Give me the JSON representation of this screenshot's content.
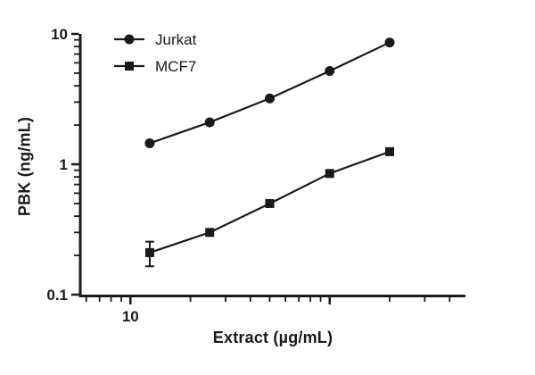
{
  "chart_data": {
    "type": "line",
    "title": "",
    "xlabel": "Extract (µg/mL)",
    "ylabel": "PBK (ng/mL)",
    "color": "#1a1a1a",
    "background": "#ffffff",
    "grid": false,
    "legend_position": "top-left",
    "x_axis": {
      "scale": "log",
      "range": [
        5.6,
        480
      ],
      "major_ticks": [
        10,
        100
      ],
      "labeled_ticks": [
        10
      ],
      "tick_labels": [
        "10"
      ]
    },
    "y_axis": {
      "scale": "log",
      "range": [
        0.1,
        10
      ],
      "major_ticks": [
        0.1,
        1,
        10
      ],
      "labeled_ticks": [
        0.1,
        1,
        10
      ],
      "tick_labels": [
        "0.1",
        "1",
        "10"
      ]
    },
    "x": [
      12.5,
      25,
      50,
      100,
      200
    ],
    "series": [
      {
        "name": "Jurkat",
        "marker": "circle",
        "values": [
          1.45,
          2.1,
          3.2,
          5.2,
          8.6
        ],
        "yerr": [
          0,
          0,
          0,
          0,
          0
        ]
      },
      {
        "name": "MCF7",
        "marker": "square",
        "values": [
          0.21,
          0.3,
          0.5,
          0.85,
          1.25
        ],
        "yerr": [
          0.045,
          0,
          0,
          0,
          0
        ]
      }
    ]
  }
}
